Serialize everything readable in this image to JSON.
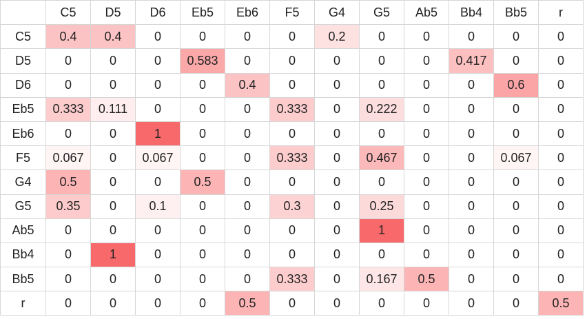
{
  "chart_data": {
    "type": "heatmap",
    "title": "",
    "xlabel": "",
    "ylabel": "",
    "columns": [
      "C5",
      "D5",
      "D6",
      "Eb5",
      "Eb6",
      "F5",
      "G4",
      "G5",
      "Ab5",
      "Bb4",
      "Bb5",
      "r"
    ],
    "rows": [
      "C5",
      "D5",
      "D6",
      "Eb5",
      "Eb6",
      "F5",
      "G4",
      "G5",
      "Ab5",
      "Bb4",
      "Bb5",
      "r"
    ],
    "values": [
      [
        0.4,
        0.4,
        0,
        0,
        0,
        0,
        0.2,
        0,
        0,
        0,
        0,
        0
      ],
      [
        0,
        0,
        0,
        0.583,
        0,
        0,
        0,
        0,
        0,
        0.417,
        0,
        0
      ],
      [
        0,
        0,
        0,
        0,
        0.4,
        0,
        0,
        0,
        0,
        0,
        0.6,
        0
      ],
      [
        0.333,
        0.111,
        0,
        0,
        0,
        0.333,
        0,
        0.222,
        0,
        0,
        0,
        0
      ],
      [
        0,
        0,
        1,
        0,
        0,
        0,
        0,
        0,
        0,
        0,
        0,
        0
      ],
      [
        0.067,
        0,
        0.067,
        0,
        0,
        0.333,
        0,
        0.467,
        0,
        0,
        0.067,
        0
      ],
      [
        0.5,
        0,
        0,
        0.5,
        0,
        0,
        0,
        0,
        0,
        0,
        0,
        0
      ],
      [
        0.35,
        0,
        0.1,
        0,
        0,
        0.3,
        0,
        0.25,
        0,
        0,
        0,
        0
      ],
      [
        0,
        0,
        0,
        0,
        0,
        0,
        0,
        1,
        0,
        0,
        0,
        0
      ],
      [
        0,
        1,
        0,
        0,
        0,
        0,
        0,
        0,
        0,
        0,
        0,
        0
      ],
      [
        0,
        0,
        0,
        0,
        0,
        0.333,
        0,
        0.167,
        0.5,
        0,
        0,
        0
      ],
      [
        0,
        0,
        0,
        0,
        0.5,
        0,
        0,
        0,
        0,
        0,
        0,
        0.5
      ]
    ],
    "color_low": "#ffffff",
    "color_high": "#f8696b",
    "value_range": [
      0,
      1
    ]
  }
}
